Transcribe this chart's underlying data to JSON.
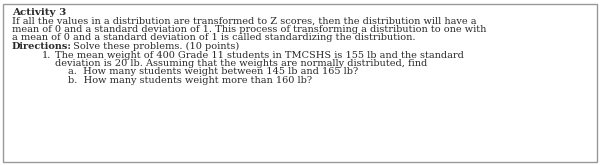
{
  "title": "Activity 3",
  "line1": "If all the values in a distribution are transformed to Z scores, then the distribution will have a",
  "line2": "mean of 0 and a standard deviation of 1. This process of transforming a distribution to one with",
  "line3": "a mean of 0 and a standard deviation of 1 is called standardizing the distribution.",
  "directions_bold": "Directions:",
  "directions_rest": " Solve these problems. (10 points)",
  "item1_num": "1.",
  "item1_line1": "The mean weight of 400 Grade 11 students in TMCSHS is 155 lb and the standard",
  "item1_line2": "deviation is 20 lb. Assuming that the weights are normally distributed, find",
  "item_a": "a.  How many students weight between 145 lb and 165 lb?",
  "item_b": "b.  How many students weight more than 160 lb?",
  "bg_color": "#ffffff",
  "text_color": "#2a2a2a",
  "border_color": "#999999",
  "font_size": 7.0,
  "title_font_size": 7.5
}
